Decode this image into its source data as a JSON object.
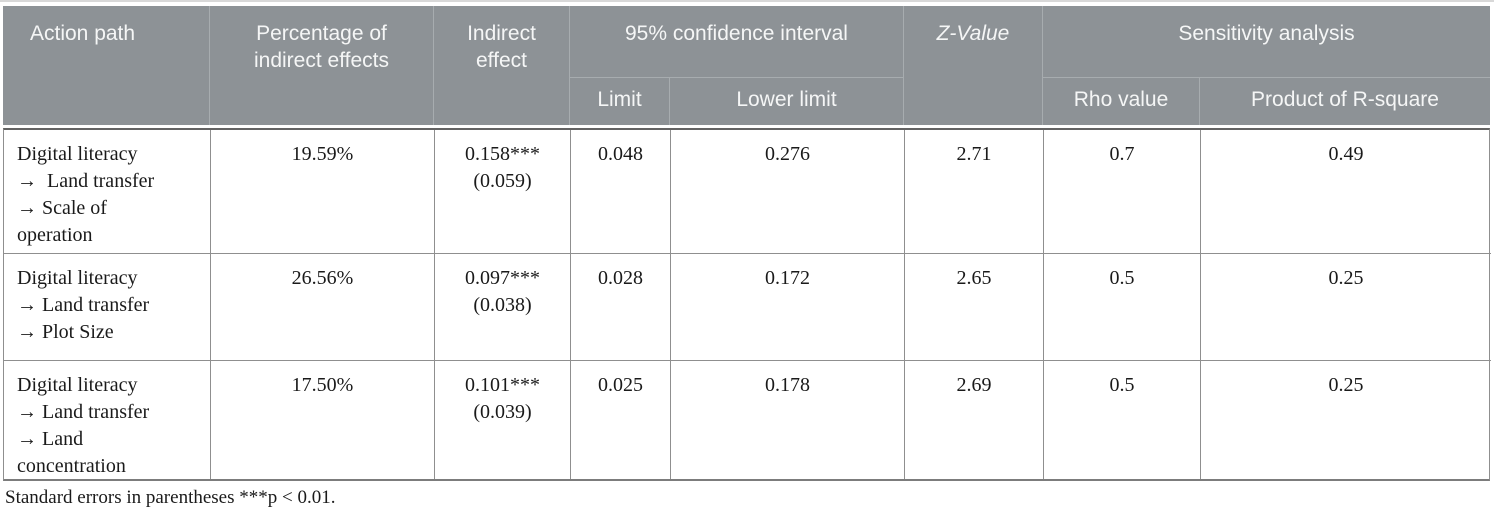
{
  "colors": {
    "header_bg": "#8d9296",
    "header_text": "#f5f6f6",
    "header_divider": "#a7acaf",
    "body_border": "#8f8f8f",
    "body_text": "#1a1a1a"
  },
  "header": {
    "action_path": "Action path",
    "percentage_of_indirect_effects": "Percentage of\nindirect effects",
    "indirect_effect": "Indirect\neffect",
    "confidence_interval": "95% confidence interval",
    "z_value": "Z-Value",
    "sensitivity_analysis": "Sensitivity analysis",
    "limit": "Limit",
    "lower_limit": "Lower limit",
    "rho_value": "Rho value",
    "product_of_r_square": "Product of R-square"
  },
  "rows": [
    {
      "action_path": "Digital literacy\n→  Land transfer\n→ Scale of\noperation",
      "percentage": "19.59%",
      "indirect_effect": "0.158***",
      "indirect_effect_se": "(0.059)",
      "limit": "0.048",
      "lower_limit": "0.276",
      "z_value": "2.71",
      "rho_value": "0.7",
      "product_r_square": "0.49"
    },
    {
      "action_path": "Digital literacy\n→ Land transfer\n→ Plot Size",
      "percentage": "26.56%",
      "indirect_effect": "0.097***",
      "indirect_effect_se": "(0.038)",
      "limit": "0.028",
      "lower_limit": "0.172",
      "z_value": "2.65",
      "rho_value": "0.5",
      "product_r_square": "0.25"
    },
    {
      "action_path": "Digital literacy\n→ Land transfer\n→ Land\nconcentration",
      "percentage": "17.50%",
      "indirect_effect": "0.101***",
      "indirect_effect_se": "(0.039)",
      "limit": "0.025",
      "lower_limit": "0.178",
      "z_value": "2.69",
      "rho_value": "0.5",
      "product_r_square": "0.25"
    }
  ],
  "footnote": "Standard errors in parentheses ***p < 0.01."
}
